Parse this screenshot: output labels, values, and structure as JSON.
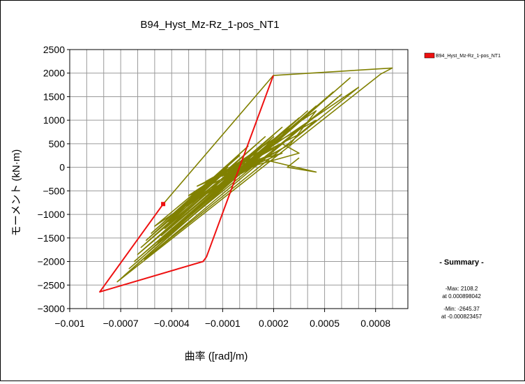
{
  "chart_data": {
    "type": "line",
    "title": "B94_Hyst_Mz-Rz_1-pos_NT1",
    "xlabel": "曲率 ([rad]/m)",
    "ylabel": "モーメント (kN·m)",
    "xlim": [
      -0.001,
      0.00099
    ],
    "ylim": [
      -3000,
      2500
    ],
    "xticks": [
      -0.001,
      -0.0007,
      -0.0004,
      -0.0001,
      0.0002,
      0.0005,
      0.0008
    ],
    "xtick_labels": [
      "−0.001",
      "−0.0007",
      "−0.0004",
      "−0.0001",
      "0.0002",
      "0.0005",
      "0.0008"
    ],
    "xgrid": [
      -0.001,
      -0.0009,
      -0.0008,
      -0.0007,
      -0.0006,
      -0.0005,
      -0.0004,
      -0.0003,
      -0.0002,
      -0.0001,
      0.0,
      0.0001,
      0.0002,
      0.0003,
      0.0004,
      0.0005,
      0.0006,
      0.0007,
      0.0008,
      0.0009
    ],
    "yticks": [
      -3000,
      -2500,
      -2000,
      -1500,
      -1000,
      -500,
      0,
      500,
      1000,
      1500,
      2000,
      2500
    ],
    "ytick_labels": [
      "−3000",
      "−2500",
      "−2000",
      "−1500",
      "−1000",
      "−500",
      "0",
      "500",
      "1000",
      "1500",
      "2000",
      "2500"
    ],
    "grid": true,
    "legend_position": "top-right",
    "series": [
      {
        "name": "B94_Hyst_Mz-Rz_1-pos_NT1",
        "color": "#ee1111",
        "x": [
          -0.00045,
          -0.000823,
          -0.000215,
          -0.000195,
          0.000198
        ],
        "y": [
          -780,
          -2645,
          -2000,
          -1900,
          1950
        ]
      },
      {
        "color": "#808000",
        "x": [
          -0.00045,
          0.000198,
          0.000898,
          0.00083,
          -0.00072,
          0.00065,
          -0.00068,
          0.00055,
          -0.00065,
          0.00045,
          -0.00062,
          0.00035,
          -0.0006,
          0.00025,
          -0.00058,
          0.00015,
          -0.00055,
          5e-05,
          -0.00052,
          0.0,
          -0.0005,
          0.0007,
          -0.00056,
          0.0006,
          -0.00054,
          0.0004,
          -0.00048,
          0.0003,
          -0.00046,
          0.0002,
          -0.00044,
          0.0001,
          -0.00042,
          -7e-05,
          -0.0004,
          -0.00012,
          -0.00038,
          0.00012,
          -0.00035,
          0.0003,
          0.00045,
          -0.0003,
          0.0002,
          -0.00025,
          0.00035,
          0.00045,
          -0.0002,
          5e-05,
          0.0003,
          0.00015,
          -0.00015,
          0.00035,
          0.00025,
          -0.0001,
          0.00012,
          0.00025,
          -5e-05,
          0.0002,
          5e-05,
          0.0001,
          0.00045,
          0.00028,
          0.00035
        ],
        "y": [
          -780,
          1950,
          2108,
          1980,
          -2430,
          1900,
          -2300,
          1600,
          -2150,
          1300,
          -2000,
          1050,
          -1850,
          850,
          -1700,
          650,
          -1550,
          450,
          -1400,
          250,
          -1250,
          1700,
          -1950,
          1550,
          -1800,
          1200,
          -1600,
          900,
          -1450,
          650,
          -1300,
          350,
          -1150,
          0,
          -1050,
          -200,
          -950,
          100,
          -850,
          500,
          1200,
          -600,
          300,
          -400,
          700,
          1000,
          -300,
          0,
          500,
          200,
          -200,
          300,
          500,
          -100,
          100,
          300,
          0,
          400,
          100,
          200,
          -100,
          0,
          200
        ]
      }
    ],
    "extremes": {
      "max": 2108.2,
      "max_at": 0.000898042,
      "min": -2645.37,
      "min_at": -0.000823457
    }
  },
  "summary": {
    "heading": "- Summary -",
    "max_line": "-Max: 2108.2",
    "max_at_line": "at 0.000898042",
    "min_line": "-Min: -2645.37",
    "min_at_line": "at -0.000823457"
  }
}
